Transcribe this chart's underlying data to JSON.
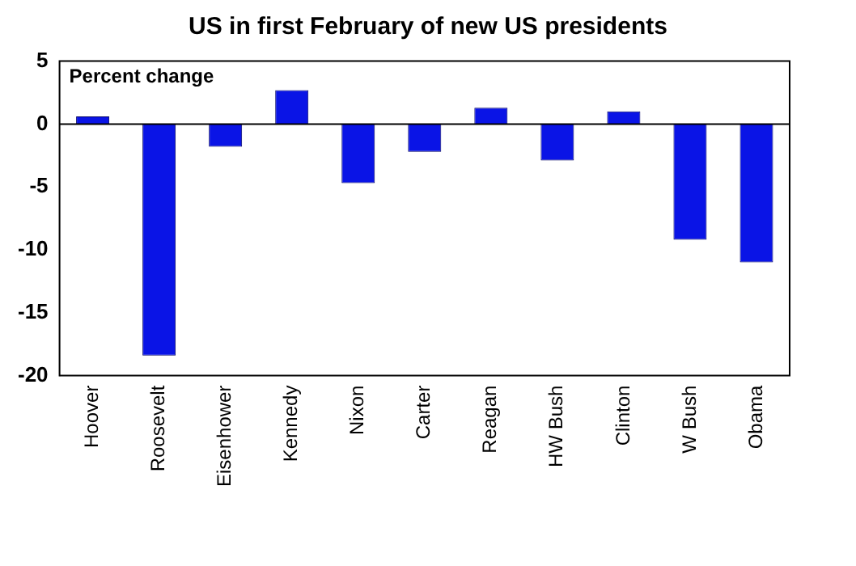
{
  "chart_data": {
    "type": "bar",
    "title": "US in first February of new US presidents",
    "ylabel": "Percent change",
    "categories": [
      "Hoover",
      "Roosevelt",
      "Eisenhower",
      "Kennedy",
      "Nixon",
      "Carter",
      "Reagan",
      "HW Bush",
      "Clinton",
      "W Bush",
      "Obama"
    ],
    "values": [
      0.6,
      -18.4,
      -1.8,
      2.7,
      -4.7,
      -2.2,
      1.3,
      -2.9,
      1.0,
      -9.2,
      -11.0
    ],
    "color": "#0a14e6",
    "ylim": [
      -20,
      5
    ],
    "yticks": [
      -20,
      -15,
      -10,
      -5,
      0,
      5
    ],
    "grid": false,
    "ref_lines": [
      {
        "axis": "y",
        "value": 0,
        "color": "#000000"
      }
    ]
  }
}
